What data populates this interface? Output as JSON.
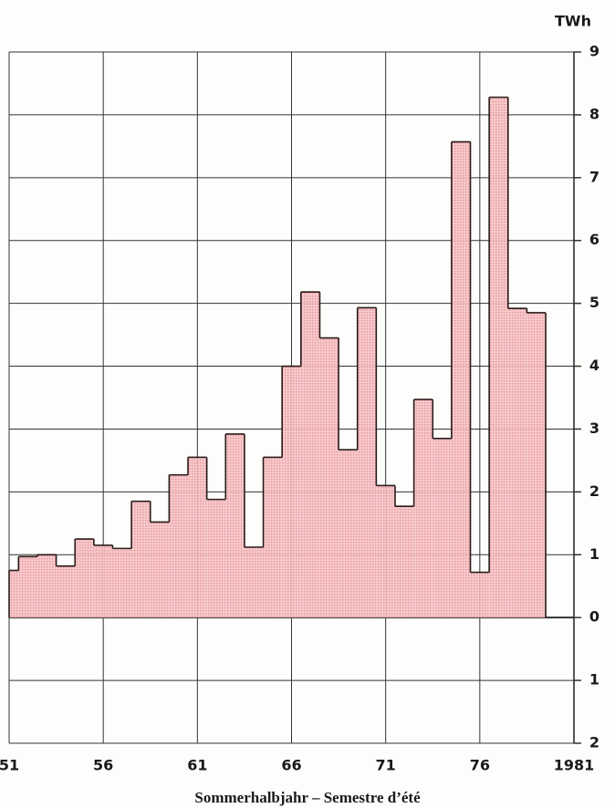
{
  "chart_data": {
    "type": "step-bar",
    "y_unit": "TWh",
    "x_label": "Sommerhalbjahr – Semestre d’été",
    "x": [
      1951,
      1952,
      1953,
      1954,
      1955,
      1956,
      1957,
      1958,
      1959,
      1960,
      1961,
      1962,
      1963,
      1964,
      1965,
      1966,
      1967,
      1968,
      1969,
      1970,
      1971,
      1972,
      1973,
      1974,
      1975,
      1976,
      1977,
      1978,
      1979
    ],
    "values": [
      0.75,
      0.97,
      1.0,
      0.82,
      1.25,
      1.15,
      1.1,
      1.85,
      1.52,
      2.27,
      2.55,
      1.88,
      2.92,
      1.12,
      2.55,
      4.0,
      5.18,
      4.45,
      2.67,
      4.93,
      2.1,
      1.77,
      3.47,
      2.85,
      7.57,
      0.72,
      8.28,
      4.92,
      4.85
    ],
    "color": "#f3b1b4",
    "xlim": [
      1951,
      1981
    ],
    "xticks": [
      {
        "value": 1951,
        "label": "51"
      },
      {
        "value": 1956,
        "label": "56"
      },
      {
        "value": 1961,
        "label": "61"
      },
      {
        "value": 1966,
        "label": "66"
      },
      {
        "value": 1971,
        "label": "71"
      },
      {
        "value": 1976,
        "label": "76"
      },
      1981
    ],
    "ylim": [
      -2,
      9
    ],
    "yticks": [
      {
        "value": -2,
        "label": "2"
      },
      {
        "value": -1,
        "label": "1"
      },
      0,
      1,
      2,
      3,
      4,
      5,
      6,
      7,
      8,
      9
    ],
    "grid": true
  }
}
